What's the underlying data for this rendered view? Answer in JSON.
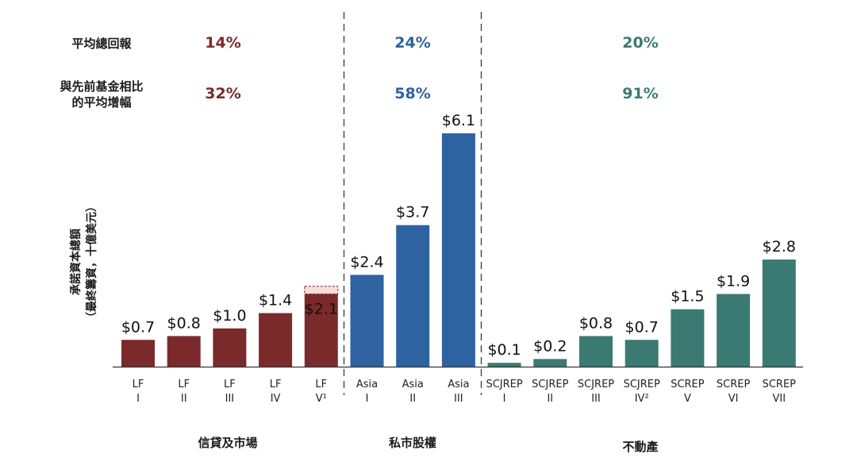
{
  "chart_data": {
    "type": "bar",
    "ylabel_lines": [
      "承諾資本總額",
      "（最終籌資，十億美元）"
    ],
    "metrics": [
      {
        "label_lines": [
          "平均總回報"
        ],
        "values": [
          "14%",
          "24%",
          "20%"
        ]
      },
      {
        "label_lines": [
          "與先前基金相比",
          "的平均增幅"
        ],
        "values": [
          "32%",
          "58%",
          "91%"
        ]
      }
    ],
    "groups": [
      {
        "name": "信貸及市場",
        "color": "#7b2a2c"
      },
      {
        "name": "私市股權",
        "color": "#2f62a0"
      },
      {
        "name": "不動產",
        "color": "#3a7a72"
      }
    ],
    "bars": [
      {
        "group": 0,
        "tick": [
          "LF",
          "I"
        ],
        "value": 0.7,
        "label": "$0.7"
      },
      {
        "group": 0,
        "tick": [
          "LF",
          "II"
        ],
        "value": 0.8,
        "label": "$0.8"
      },
      {
        "group": 0,
        "tick": [
          "LF",
          "III"
        ],
        "value": 1.0,
        "label": "$1.0"
      },
      {
        "group": 0,
        "tick": [
          "LF",
          "IV"
        ],
        "value": 1.4,
        "label": "$1.4"
      },
      {
        "group": 0,
        "tick": [
          "LF",
          "V¹"
        ],
        "value": 1.9,
        "label": "$2.1",
        "total": 2.1,
        "highlight_color": "#f7dedd"
      },
      {
        "group": 1,
        "tick": [
          "Asia",
          "I"
        ],
        "value": 2.4,
        "label": "$2.4"
      },
      {
        "group": 1,
        "tick": [
          "Asia",
          "II"
        ],
        "value": 3.7,
        "label": "$3.7"
      },
      {
        "group": 1,
        "tick": [
          "Asia",
          "III"
        ],
        "value": 6.1,
        "label": "$6.1"
      },
      {
        "group": 2,
        "tick": [
          "SCJREP",
          "I"
        ],
        "value": 0.1,
        "label": "$0.1"
      },
      {
        "group": 2,
        "tick": [
          "SCJREP",
          "II"
        ],
        "value": 0.2,
        "label": "$0.2"
      },
      {
        "group": 2,
        "tick": [
          "SCJREP",
          "III"
        ],
        "value": 0.8,
        "label": "$0.8"
      },
      {
        "group": 2,
        "tick": [
          "SCJREP",
          "IV²"
        ],
        "value": 0.7,
        "label": "$0.7"
      },
      {
        "group": 2,
        "tick": [
          "SCREP",
          "V"
        ],
        "value": 1.5,
        "label": "$1.5"
      },
      {
        "group": 2,
        "tick": [
          "SCREP",
          "VI"
        ],
        "value": 1.9,
        "label": "$1.9"
      },
      {
        "group": 2,
        "tick": [
          "SCREP",
          "VII"
        ],
        "value": 2.8,
        "label": "$2.8"
      }
    ],
    "ylim": [
      0,
      6.1
    ],
    "grid": false,
    "legend": "none"
  }
}
